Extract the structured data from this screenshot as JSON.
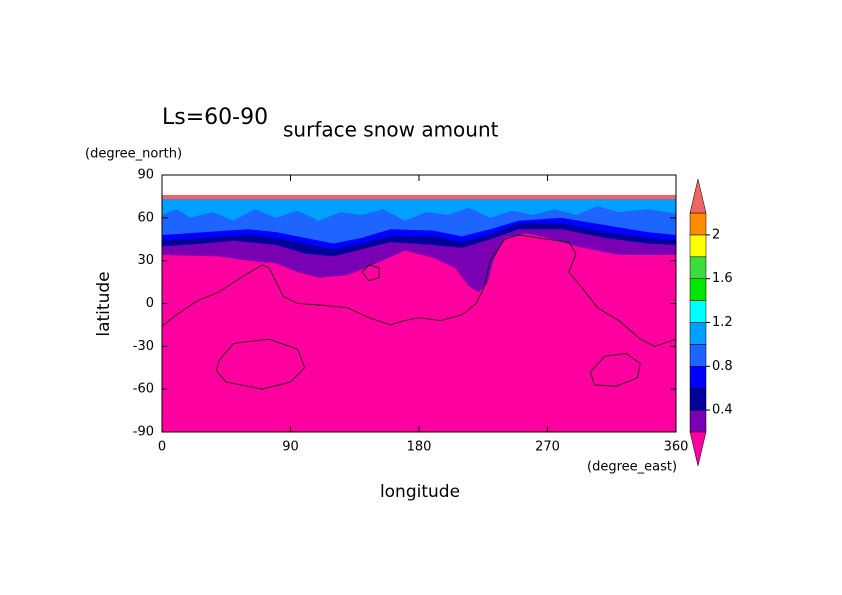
{
  "chart_data": {
    "type": "contour",
    "title": "surface snow amount",
    "annotation": "Ls=60-90",
    "xlabel": "longitude",
    "ylabel": "latitude",
    "xunits": "(degree_east)",
    "yunits": "(degree_north)",
    "xlim": [
      0,
      360
    ],
    "ylim": [
      -90,
      90
    ],
    "xticks": [
      0,
      90,
      180,
      270,
      360
    ],
    "yticks": [
      -90,
      -60,
      -30,
      0,
      30,
      60,
      90
    ],
    "levels": [
      0.2,
      0.4,
      0.6,
      0.8,
      1.0,
      1.2,
      1.4,
      1.6,
      1.8,
      2.0,
      2.2
    ],
    "colors": [
      "#7a00b4",
      "#00009a",
      "#0000ff",
      "#1e64ff",
      "#00a0ff",
      "#00ffff",
      "#00e600",
      "#3cdc3c",
      "#ffff00",
      "#ff8c00"
    ],
    "under_color": "#ff00a0",
    "over_color": "#f06464",
    "colorbar_ticks": [
      0.4,
      0.8,
      1.2,
      1.6,
      2
    ],
    "fills": [
      {
        "color_index": 0,
        "top": 73,
        "points": [
          [
            0,
            34
          ],
          [
            40,
            33
          ],
          [
            60,
            30
          ],
          [
            80,
            28
          ],
          [
            95,
            22
          ],
          [
            110,
            18
          ],
          [
            130,
            20
          ],
          [
            150,
            28
          ],
          [
            170,
            37
          ],
          [
            190,
            32
          ],
          [
            205,
            25
          ],
          [
            215,
            12
          ],
          [
            222,
            8
          ],
          [
            228,
            14
          ],
          [
            232,
            30
          ],
          [
            240,
            46
          ],
          [
            255,
            49
          ],
          [
            270,
            46
          ],
          [
            290,
            40
          ],
          [
            320,
            34
          ],
          [
            360,
            34
          ]
        ]
      },
      {
        "color_index": 1,
        "top": 73,
        "points": [
          [
            0,
            40
          ],
          [
            30,
            42
          ],
          [
            50,
            44
          ],
          [
            80,
            41
          ],
          [
            100,
            35
          ],
          [
            120,
            33
          ],
          [
            140,
            38
          ],
          [
            160,
            43
          ],
          [
            190,
            41
          ],
          [
            210,
            39
          ],
          [
            230,
            45
          ],
          [
            250,
            52
          ],
          [
            280,
            52
          ],
          [
            310,
            46
          ],
          [
            340,
            42
          ],
          [
            360,
            41
          ]
        ]
      },
      {
        "color_index": 2,
        "top": 73,
        "points": [
          [
            0,
            44
          ],
          [
            30,
            46
          ],
          [
            60,
            48
          ],
          [
            80,
            46
          ],
          [
            100,
            42
          ],
          [
            120,
            38
          ],
          [
            140,
            42
          ],
          [
            160,
            47
          ],
          [
            190,
            47
          ],
          [
            210,
            43
          ],
          [
            230,
            48
          ],
          [
            250,
            56
          ],
          [
            280,
            56
          ],
          [
            310,
            50
          ],
          [
            340,
            46
          ],
          [
            360,
            44
          ]
        ]
      },
      {
        "color_index": 3,
        "top": 73,
        "points": [
          [
            0,
            48
          ],
          [
            30,
            50
          ],
          [
            60,
            52
          ],
          [
            80,
            50
          ],
          [
            100,
            46
          ],
          [
            120,
            42
          ],
          [
            140,
            46
          ],
          [
            160,
            52
          ],
          [
            190,
            51
          ],
          [
            210,
            47
          ],
          [
            230,
            52
          ],
          [
            250,
            58
          ],
          [
            280,
            60
          ],
          [
            310,
            55
          ],
          [
            340,
            50
          ],
          [
            360,
            48
          ]
        ]
      },
      {
        "color_index": 4,
        "top": 73,
        "points": [
          [
            0,
            62
          ],
          [
            10,
            66
          ],
          [
            20,
            60
          ],
          [
            35,
            64
          ],
          [
            50,
            58
          ],
          [
            65,
            66
          ],
          [
            80,
            60
          ],
          [
            95,
            65
          ],
          [
            110,
            58
          ],
          [
            125,
            64
          ],
          [
            140,
            62
          ],
          [
            155,
            66
          ],
          [
            170,
            58
          ],
          [
            185,
            64
          ],
          [
            200,
            62
          ],
          [
            215,
            67
          ],
          [
            230,
            60
          ],
          [
            245,
            65
          ],
          [
            260,
            62
          ],
          [
            275,
            66
          ],
          [
            290,
            62
          ],
          [
            305,
            68
          ],
          [
            320,
            64
          ],
          [
            340,
            66
          ],
          [
            360,
            63
          ]
        ]
      }
    ],
    "over_band": [
      73,
      76
    ],
    "contour_lines": [
      [
        [
          0,
          -16
        ],
        [
          10,
          -8
        ],
        [
          25,
          2
        ],
        [
          40,
          8
        ],
        [
          55,
          18
        ],
        [
          70,
          27
        ],
        [
          75,
          25
        ],
        [
          80,
          15
        ],
        [
          85,
          5
        ],
        [
          95,
          0
        ],
        [
          110,
          -1
        ],
        [
          130,
          -3
        ],
        [
          145,
          -10
        ],
        [
          160,
          -15
        ],
        [
          170,
          -12
        ],
        [
          180,
          -10
        ],
        [
          195,
          -12
        ],
        [
          210,
          -8
        ],
        [
          220,
          0
        ],
        [
          225,
          10
        ],
        [
          230,
          30
        ],
        [
          240,
          45
        ],
        [
          250,
          48
        ],
        [
          270,
          45
        ],
        [
          285,
          43
        ],
        [
          290,
          35
        ],
        [
          285,
          22
        ],
        [
          295,
          10
        ],
        [
          305,
          -3
        ],
        [
          320,
          -12
        ],
        [
          335,
          -25
        ],
        [
          345,
          -30
        ],
        [
          360,
          -25
        ]
      ],
      [
        [
          40,
          -40
        ],
        [
          50,
          -28
        ],
        [
          75,
          -25
        ],
        [
          95,
          -32
        ],
        [
          100,
          -45
        ],
        [
          90,
          -55
        ],
        [
          70,
          -60
        ],
        [
          45,
          -55
        ],
        [
          38,
          -47
        ],
        [
          40,
          -40
        ]
      ],
      [
        [
          300,
          -48
        ],
        [
          310,
          -37
        ],
        [
          325,
          -35
        ],
        [
          335,
          -42
        ],
        [
          333,
          -52
        ],
        [
          318,
          -58
        ],
        [
          303,
          -57
        ],
        [
          300,
          -48
        ]
      ],
      [
        [
          140,
          22
        ],
        [
          145,
          27
        ],
        [
          152,
          25
        ],
        [
          152,
          18
        ],
        [
          145,
          16
        ],
        [
          140,
          22
        ]
      ]
    ]
  }
}
